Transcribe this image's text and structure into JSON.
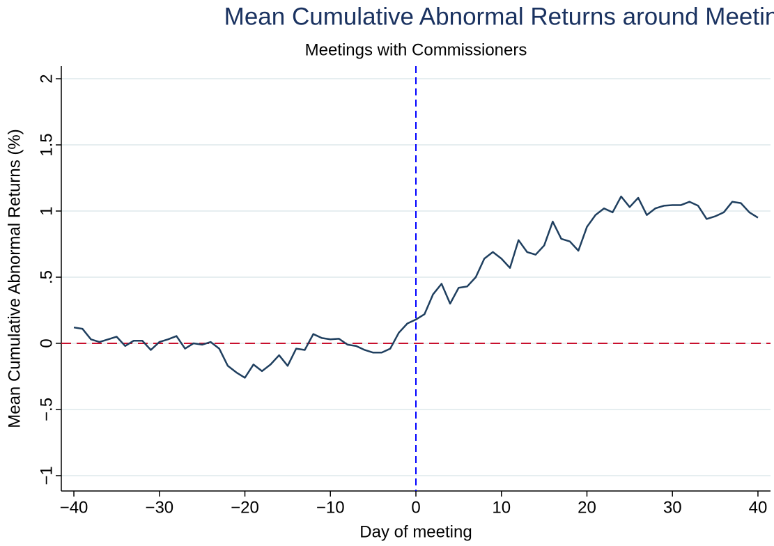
{
  "chart_data": {
    "type": "line",
    "title": "Mean Cumulative Abnormal Returns around Meetings",
    "subtitle": "Meetings with Commissioners",
    "x_label": "Day of meeting",
    "y_label": "Mean Cumulative Abnormal Returns (%)",
    "x": [
      -40,
      -39,
      -38,
      -37,
      -36,
      -35,
      -34,
      -33,
      -32,
      -31,
      -30,
      -29,
      -28,
      -27,
      -26,
      -25,
      -24,
      -23,
      -22,
      -21,
      -20,
      -19,
      -18,
      -17,
      -16,
      -15,
      -14,
      -13,
      -12,
      -11,
      -10,
      -9,
      -8,
      -7,
      -6,
      -5,
      -4,
      -3,
      -2,
      -1,
      0,
      1,
      2,
      3,
      4,
      5,
      6,
      7,
      8,
      9,
      10,
      11,
      12,
      13,
      14,
      15,
      16,
      17,
      18,
      19,
      20,
      21,
      22,
      23,
      24,
      25,
      26,
      27,
      28,
      29,
      30,
      31,
      32,
      33,
      34,
      35,
      36,
      37,
      38,
      39,
      40
    ],
    "series": [
      {
        "color": "#1f3f5f",
        "values": [
          0.12,
          0.11,
          0.03,
          0.01,
          0.03,
          0.05,
          -0.02,
          0.02,
          0.02,
          -0.05,
          0.01,
          0.03,
          0.055,
          -0.04,
          0.0,
          -0.01,
          0.01,
          -0.04,
          -0.17,
          -0.22,
          -0.26,
          -0.16,
          -0.21,
          -0.16,
          -0.09,
          -0.17,
          -0.04,
          -0.05,
          0.07,
          0.04,
          0.03,
          0.035,
          -0.01,
          -0.02,
          -0.05,
          -0.07,
          -0.07,
          -0.04,
          0.08,
          0.15,
          0.18,
          0.22,
          0.37,
          0.45,
          0.3,
          0.42,
          0.43,
          0.5,
          0.64,
          0.69,
          0.64,
          0.57,
          0.78,
          0.69,
          0.67,
          0.74,
          0.92,
          0.79,
          0.77,
          0.7,
          0.88,
          0.97,
          1.02,
          0.99,
          1.11,
          1.03,
          1.1,
          0.97,
          1.02,
          1.04,
          1.045,
          1.045,
          1.07,
          1.04,
          0.94,
          0.96,
          0.99,
          1.07,
          1.06,
          0.99,
          0.95
        ]
      }
    ],
    "xlim": [
      -41.47,
      41.47
    ],
    "ylim": [
      -1.116,
      2.095
    ],
    "xticks": [
      {
        "value": -40,
        "label": "−40"
      },
      {
        "value": -30,
        "label": "−30"
      },
      {
        "value": -20,
        "label": "−20"
      },
      {
        "value": -10,
        "label": "−10"
      },
      0,
      10,
      20,
      30,
      40
    ],
    "yticks": [
      {
        "value": -1,
        "label": "−1"
      },
      {
        "value": -0.5,
        "label": "−.5"
      },
      0,
      {
        "value": 0.5,
        "label": ".5"
      },
      1,
      1.5,
      2
    ],
    "grid": true,
    "reference_lines": [
      {
        "axis": "y",
        "value": 0,
        "color": "#c8102e"
      },
      {
        "axis": "x",
        "value": 0,
        "color": "#0000ff"
      }
    ]
  }
}
